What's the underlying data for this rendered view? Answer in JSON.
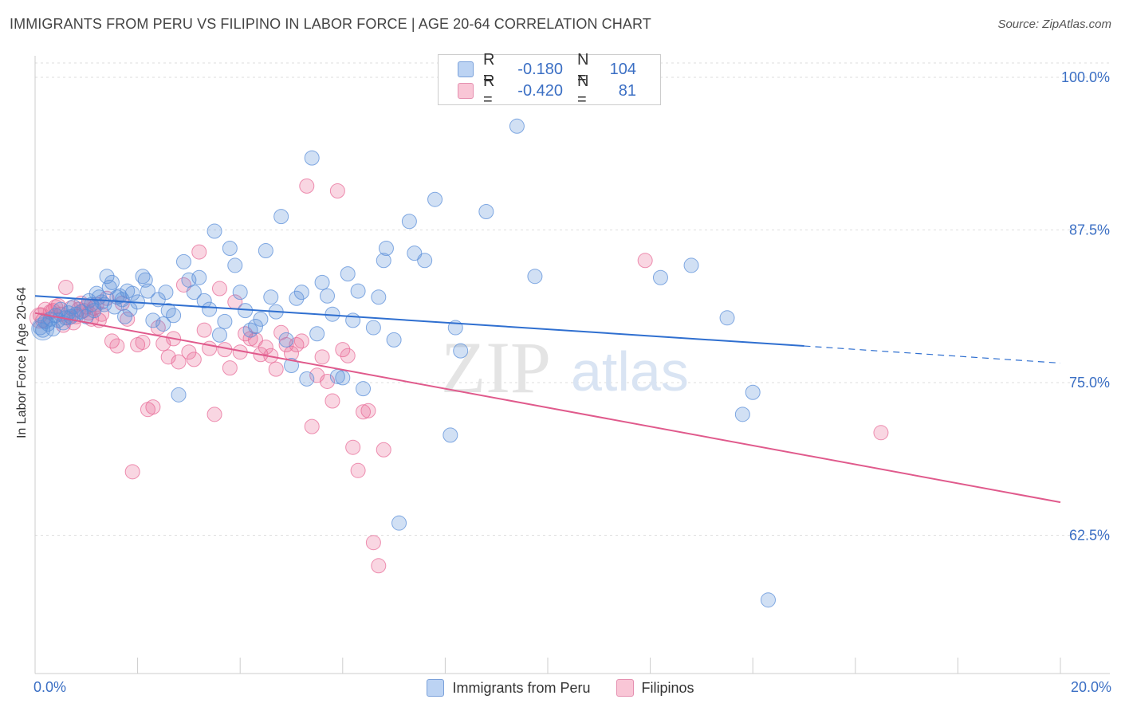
{
  "header": {
    "title": "IMMIGRANTS FROM PERU VS FILIPINO IN LABOR FORCE | AGE 20-64 CORRELATION CHART",
    "source": "Source: ZipAtlas.com"
  },
  "legend_top": {
    "rows": [
      {
        "r_label": "R =",
        "r_value": "-0.180",
        "n_label": "N =",
        "n_value": "104",
        "color": "#5b8fd9"
      },
      {
        "r_label": "R =",
        "r_value": "-0.420",
        "n_label": "N =",
        "n_value": "81",
        "color": "#e86c98"
      }
    ]
  },
  "legend_bottom": {
    "items": [
      {
        "label": "Immigrants from Peru",
        "color": "#5b8fd9"
      },
      {
        "label": "Filipinos",
        "color": "#e86c98"
      }
    ]
  },
  "watermark": {
    "zip": "ZIP",
    "atlas": "atlas"
  },
  "chart_data": {
    "type": "scatter",
    "ylabel": "In Labor Force | Age 20-64",
    "xlabel": "",
    "xlim": [
      0,
      20
    ],
    "ylim": [
      51.5,
      102
    ],
    "x_tick_labels": {
      "left": "0.0%",
      "right": "20.0%"
    },
    "y_ticks": [
      {
        "value": 100.0,
        "label": "100.0%"
      },
      {
        "value": 87.5,
        "label": "87.5%"
      },
      {
        "value": 75.0,
        "label": "75.0%"
      },
      {
        "value": 62.5,
        "label": "62.5%"
      }
    ],
    "grid": true,
    "colors": {
      "blue": "#5b8fd9",
      "blue_line": "#2f6fd0",
      "pink": "#e86c98",
      "pink_line": "#e05a8c",
      "tick_text": "#3b6fc4"
    },
    "series": [
      {
        "name": "Immigrants from Peru",
        "color": "#5b8fd9",
        "trend": {
          "x0": 0,
          "y0": 82.1,
          "x1": 15.0,
          "y1": 78.0,
          "dash_to_x": 20.0,
          "dash_to_y": 76.6
        },
        "points": [
          [
            0.1,
            79.5
          ],
          [
            0.2,
            80
          ],
          [
            0.25,
            79.8
          ],
          [
            0.3,
            80.2
          ],
          [
            0.35,
            79.4
          ],
          [
            0.4,
            80.5
          ],
          [
            0.5,
            81
          ],
          [
            0.6,
            80.3
          ],
          [
            0.7,
            80.4
          ],
          [
            0.8,
            80.6
          ],
          [
            0.9,
            80.8
          ],
          [
            1.0,
            80.4
          ],
          [
            1.1,
            81.4
          ],
          [
            1.2,
            82.3
          ],
          [
            1.3,
            81.6
          ],
          [
            1.4,
            83.7
          ],
          [
            1.5,
            83.2
          ],
          [
            1.6,
            82
          ],
          [
            1.7,
            81.8
          ],
          [
            1.8,
            82.5
          ],
          [
            1.9,
            82.3
          ],
          [
            2.0,
            81.6
          ],
          [
            2.1,
            83.7
          ],
          [
            2.15,
            83.4
          ],
          [
            2.2,
            82.5
          ],
          [
            2.3,
            80.1
          ],
          [
            2.4,
            81.8
          ],
          [
            2.5,
            79.8
          ],
          [
            2.55,
            82.4
          ],
          [
            2.6,
            80.9
          ],
          [
            2.7,
            80.5
          ],
          [
            2.8,
            74
          ],
          [
            2.9,
            84.9
          ],
          [
            3.0,
            83.4
          ],
          [
            3.1,
            82.4
          ],
          [
            3.2,
            83.6
          ],
          [
            3.3,
            81.7
          ],
          [
            3.4,
            81
          ],
          [
            3.5,
            87.4
          ],
          [
            3.6,
            78.9
          ],
          [
            3.7,
            80
          ],
          [
            3.8,
            86
          ],
          [
            3.9,
            84.6
          ],
          [
            4.0,
            82.4
          ],
          [
            4.1,
            80.9
          ],
          [
            4.2,
            79.3
          ],
          [
            4.3,
            79.6
          ],
          [
            4.4,
            80.2
          ],
          [
            4.5,
            85.8
          ],
          [
            4.6,
            82
          ],
          [
            4.7,
            80.8
          ],
          [
            4.8,
            88.6
          ],
          [
            4.9,
            78.5
          ],
          [
            5.0,
            76.4
          ],
          [
            5.1,
            81.9
          ],
          [
            5.2,
            82.4
          ],
          [
            5.3,
            75.3
          ],
          [
            5.4,
            93.4
          ],
          [
            5.5,
            79
          ],
          [
            5.6,
            83.2
          ],
          [
            5.7,
            82.1
          ],
          [
            5.8,
            80.6
          ],
          [
            5.9,
            75.5
          ],
          [
            6.0,
            75.4
          ],
          [
            6.1,
            83.9
          ],
          [
            6.2,
            80.1
          ],
          [
            6.3,
            82.5
          ],
          [
            6.4,
            74.5
          ],
          [
            6.6,
            79.5
          ],
          [
            6.7,
            82
          ],
          [
            6.8,
            85
          ],
          [
            6.85,
            86
          ],
          [
            7.0,
            78.5
          ],
          [
            7.3,
            88.2
          ],
          [
            7.4,
            85.6
          ],
          [
            7.6,
            85
          ],
          [
            7.8,
            90
          ],
          [
            8.1,
            70.7
          ],
          [
            8.2,
            79.5
          ],
          [
            8.3,
            77.6
          ],
          [
            8.8,
            89
          ],
          [
            9.4,
            96
          ],
          [
            9.75,
            83.7
          ],
          [
            12.2,
            83.6
          ],
          [
            12.8,
            84.6
          ],
          [
            13.5,
            80.3
          ],
          [
            13.8,
            72.4
          ],
          [
            14.0,
            74.2
          ],
          [
            14.3,
            57.2
          ],
          [
            7.1,
            63.5
          ],
          [
            0.15,
            79.3
          ],
          [
            0.45,
            80.1
          ],
          [
            0.55,
            79.9
          ],
          [
            0.65,
            80.7
          ],
          [
            0.75,
            81.2
          ],
          [
            1.05,
            81.7
          ],
          [
            1.15,
            80.9
          ],
          [
            1.25,
            82
          ],
          [
            1.35,
            81.4
          ],
          [
            1.45,
            82.8
          ],
          [
            1.55,
            81.2
          ],
          [
            1.65,
            82.1
          ],
          [
            1.75,
            80.4
          ],
          [
            1.85,
            81
          ]
        ]
      },
      {
        "name": "Filipinos",
        "color": "#e86c98",
        "trend": {
          "x0": 0,
          "y0": 80.7,
          "x1": 20.0,
          "y1": 65.2
        },
        "points": [
          [
            0.1,
            80.5
          ],
          [
            0.2,
            81
          ],
          [
            0.3,
            80.8
          ],
          [
            0.4,
            81.2
          ],
          [
            0.5,
            80.6
          ],
          [
            0.6,
            82.8
          ],
          [
            0.7,
            81.1
          ],
          [
            0.8,
            80.4
          ],
          [
            0.9,
            81.5
          ],
          [
            1.0,
            81.2
          ],
          [
            1.1,
            80.2
          ],
          [
            1.2,
            81.4
          ],
          [
            1.3,
            80.6
          ],
          [
            1.4,
            81.9
          ],
          [
            1.5,
            78.4
          ],
          [
            1.6,
            78
          ],
          [
            1.7,
            81.5
          ],
          [
            1.8,
            80.2
          ],
          [
            1.9,
            67.7
          ],
          [
            2.0,
            78.1
          ],
          [
            2.1,
            78.3
          ],
          [
            2.2,
            72.8
          ],
          [
            2.3,
            73
          ],
          [
            2.4,
            79.5
          ],
          [
            2.5,
            78.2
          ],
          [
            2.6,
            77.1
          ],
          [
            2.7,
            78.6
          ],
          [
            2.8,
            76.7
          ],
          [
            2.9,
            83
          ],
          [
            3.0,
            77.5
          ],
          [
            3.1,
            76.9
          ],
          [
            3.2,
            85.7
          ],
          [
            3.3,
            79.3
          ],
          [
            3.4,
            77.8
          ],
          [
            3.5,
            72.4
          ],
          [
            3.6,
            82.7
          ],
          [
            3.7,
            77.7
          ],
          [
            3.8,
            76.2
          ],
          [
            3.9,
            81.6
          ],
          [
            4.0,
            77.5
          ],
          [
            4.1,
            79
          ],
          [
            4.2,
            78.6
          ],
          [
            4.3,
            78.5
          ],
          [
            4.4,
            77.3
          ],
          [
            4.5,
            77.9
          ],
          [
            4.6,
            77.2
          ],
          [
            4.7,
            76.1
          ],
          [
            4.8,
            79.1
          ],
          [
            4.9,
            78.1
          ],
          [
            5.0,
            77.4
          ],
          [
            5.1,
            78.1
          ],
          [
            5.2,
            78.4
          ],
          [
            5.3,
            91.1
          ],
          [
            5.4,
            71.4
          ],
          [
            5.5,
            75.6
          ],
          [
            5.6,
            77.1
          ],
          [
            5.7,
            75.1
          ],
          [
            5.8,
            73.5
          ],
          [
            5.9,
            90.7
          ],
          [
            6.0,
            77.7
          ],
          [
            6.1,
            77.2
          ],
          [
            6.2,
            69.7
          ],
          [
            6.3,
            67.8
          ],
          [
            6.4,
            72.6
          ],
          [
            6.5,
            72.7
          ],
          [
            6.6,
            61.9
          ],
          [
            6.7,
            60
          ],
          [
            6.8,
            69.5
          ],
          [
            11.9,
            85
          ],
          [
            16.5,
            70.9
          ],
          [
            0.15,
            80.1
          ],
          [
            0.35,
            80.9
          ],
          [
            0.45,
            81.3
          ],
          [
            0.55,
            79.7
          ],
          [
            0.65,
            80.3
          ],
          [
            0.75,
            79.9
          ],
          [
            0.85,
            81
          ],
          [
            0.95,
            80.9
          ],
          [
            1.05,
            80.7
          ],
          [
            1.15,
            81.1
          ],
          [
            1.25,
            80.1
          ]
        ]
      }
    ]
  }
}
